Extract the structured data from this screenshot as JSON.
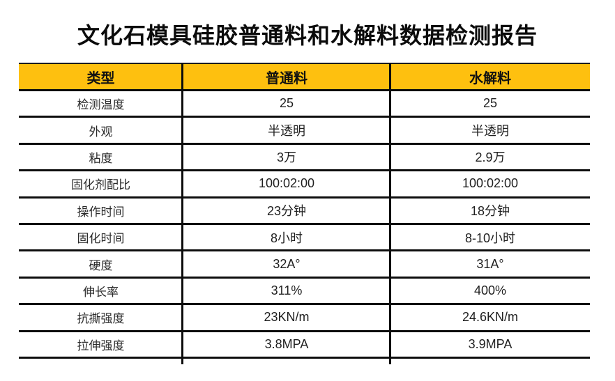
{
  "title": "文化石模具硅胶普通料和水解料数据检测报告",
  "colors": {
    "header_bg": "#FEC00F",
    "border": "#0D0D0D",
    "title_text": "#0B0B0B"
  },
  "table": {
    "headers": [
      "类型",
      "普通料",
      "水解料"
    ],
    "rows": [
      {
        "label": "检测温度",
        "ordinary": "25",
        "hydrolyzed": "25"
      },
      {
        "label": "外观",
        "ordinary": "半透明",
        "hydrolyzed": "半透明"
      },
      {
        "label": "粘度",
        "ordinary": "3万",
        "hydrolyzed": "2.9万"
      },
      {
        "label": "固化剂配比",
        "ordinary": "100:02:00",
        "hydrolyzed": "100:02:00"
      },
      {
        "label": "操作时间",
        "ordinary": "23分钟",
        "hydrolyzed": "18分钟"
      },
      {
        "label": "固化时间",
        "ordinary": "8小时",
        "hydrolyzed": "8-10小时"
      },
      {
        "label": "硬度",
        "ordinary": "32A°",
        "hydrolyzed": "31A°"
      },
      {
        "label": "伸长率",
        "ordinary": "311%",
        "hydrolyzed": "400%"
      },
      {
        "label": "抗撕强度",
        "ordinary": "23KN/m",
        "hydrolyzed": "24.6KN/m"
      },
      {
        "label": "拉伸强度",
        "ordinary": "3.8MPA",
        "hydrolyzed": "3.9MPA"
      }
    ]
  },
  "chart_data": {
    "type": "table",
    "title": "文化石模具硅胶普通料和水解料数据检测报告",
    "columns": [
      "类型",
      "普通料",
      "水解料"
    ],
    "rows": [
      [
        "检测温度",
        "25",
        "25"
      ],
      [
        "外观",
        "半透明",
        "半透明"
      ],
      [
        "粘度",
        "3万",
        "2.9万"
      ],
      [
        "固化剂配比",
        "100:02:00",
        "100:02:00"
      ],
      [
        "操作时间",
        "23分钟",
        "18分钟"
      ],
      [
        "固化时间",
        "8小时",
        "8-10小时"
      ],
      [
        "硬度",
        "32A°",
        "31A°"
      ],
      [
        "伸长率",
        "311%",
        "400%"
      ],
      [
        "抗撕强度",
        "23KN/m",
        "24.6KN/m"
      ],
      [
        "拉伸强度",
        "3.8MPA",
        "3.9MPA"
      ]
    ]
  }
}
